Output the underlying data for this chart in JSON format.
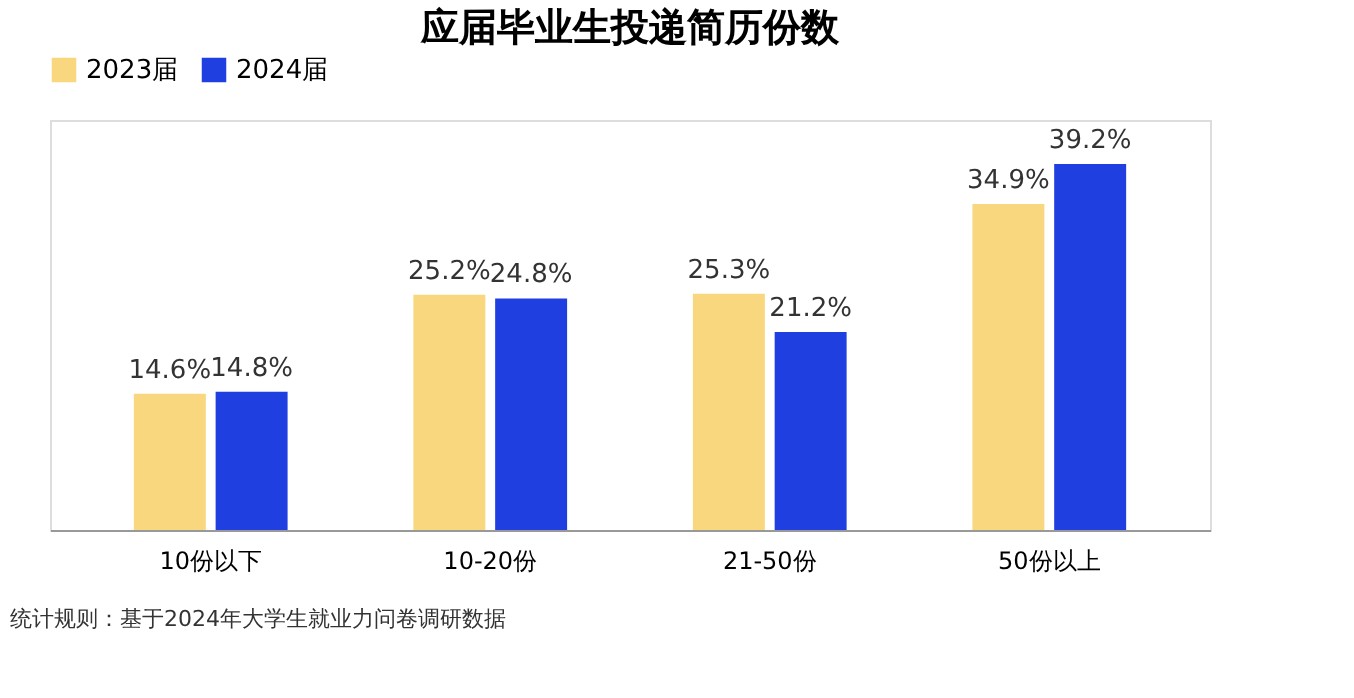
{
  "chart_data": {
    "type": "bar",
    "title": "应届毕业生投递简历份数",
    "categories": [
      "10份以下",
      "10-20份",
      "21-50份",
      "50份以上"
    ],
    "series": [
      {
        "name": "2023届",
        "color": "#f9d77e",
        "values": [
          14.6,
          25.2,
          25.3,
          34.9
        ],
        "value_labels": [
          "14.6%",
          "25.2%",
          "25.3%",
          "34.9%"
        ]
      },
      {
        "name": "2024届",
        "color": "#1f3fe0",
        "values": [
          14.8,
          24.8,
          21.2,
          39.2
        ],
        "value_labels": [
          "14.8%",
          "24.8%",
          "21.2%",
          "39.2%"
        ]
      }
    ],
    "legend": "top",
    "grid": false,
    "annotations": [
      "统计规则：基于2024年大学生就业力问卷调研数据"
    ]
  }
}
